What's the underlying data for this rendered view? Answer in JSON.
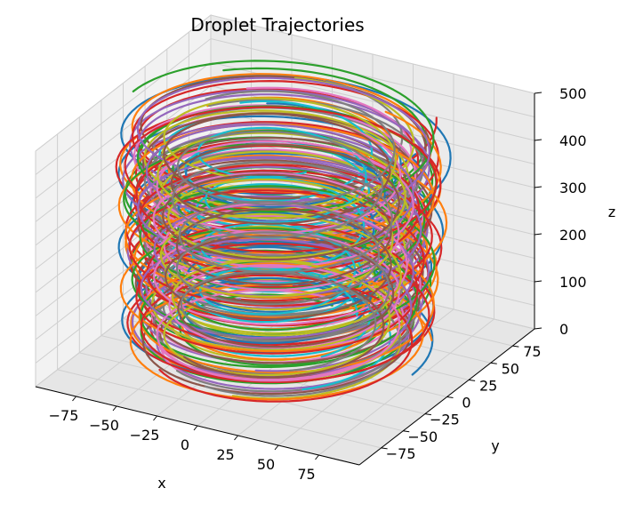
{
  "chart_data": {
    "type": "line3d",
    "title": "Droplet Trajectories",
    "xlabel": "x",
    "ylabel": "y",
    "zlabel": "z",
    "xlim": [
      -100,
      100
    ],
    "ylim": [
      -100,
      100
    ],
    "zlim": [
      0,
      500
    ],
    "x_ticks": [
      "−75",
      "−50",
      "−25",
      "0",
      "25",
      "50",
      "75"
    ],
    "y_ticks": [
      "−75",
      "−50",
      "−25",
      "0",
      "25",
      "50",
      "75"
    ],
    "z_ticks": [
      "0",
      "100",
      "200",
      "300",
      "400",
      "500"
    ],
    "x_tick_values": [
      -75,
      -50,
      -25,
      0,
      25,
      50,
      75
    ],
    "y_tick_values": [
      -75,
      -50,
      -25,
      0,
      25,
      50,
      75
    ],
    "z_tick_values": [
      0,
      100,
      200,
      300,
      400,
      500
    ],
    "grid": true,
    "legend": "none",
    "palette": [
      "#1f77b4",
      "#ff7f0e",
      "#2ca02c",
      "#d62728",
      "#9467bd",
      "#8c564b",
      "#e377c2",
      "#7f7f7f",
      "#bcbd22",
      "#17becf"
    ],
    "series": [
      {
        "color": "#1f77b4",
        "radius": 88,
        "z_start": 20,
        "z_end": 490,
        "turns": 6.0,
        "phase": 0.0
      },
      {
        "color": "#ff7f0e",
        "radius": 85,
        "z_start": 15,
        "z_end": 480,
        "turns": 5.5,
        "phase": 0.6
      },
      {
        "color": "#2ca02c",
        "radius": 82,
        "z_start": 10,
        "z_end": 470,
        "turns": 6.2,
        "phase": 1.2
      },
      {
        "color": "#d62728",
        "radius": 80,
        "z_start": 25,
        "z_end": 495,
        "turns": 5.8,
        "phase": 1.8
      },
      {
        "color": "#9467bd",
        "radius": 78,
        "z_start": 5,
        "z_end": 460,
        "turns": 6.5,
        "phase": 2.4
      },
      {
        "color": "#8c564b",
        "radius": 75,
        "z_start": 30,
        "z_end": 485,
        "turns": 5.2,
        "phase": 3.0
      },
      {
        "color": "#e377c2",
        "radius": 72,
        "z_start": 12,
        "z_end": 450,
        "turns": 6.8,
        "phase": 3.6
      },
      {
        "color": "#7f7f7f",
        "radius": 70,
        "z_start": 18,
        "z_end": 475,
        "turns": 5.6,
        "phase": 4.2
      },
      {
        "color": "#bcbd22",
        "radius": 68,
        "z_start": 8,
        "z_end": 440,
        "turns": 6.1,
        "phase": 4.8
      },
      {
        "color": "#17becf",
        "radius": 65,
        "z_start": 22,
        "z_end": 430,
        "turns": 5.9,
        "phase": 5.4
      },
      {
        "color": "#1f77b4",
        "radius": 62,
        "z_start": 40,
        "z_end": 420,
        "turns": 5.3,
        "phase": 0.3
      },
      {
        "color": "#ff7f0e",
        "radius": 60,
        "z_start": 35,
        "z_end": 445,
        "turns": 6.3,
        "phase": 0.9
      },
      {
        "color": "#2ca02c",
        "radius": 58,
        "z_start": 28,
        "z_end": 410,
        "turns": 5.7,
        "phase": 1.5
      },
      {
        "color": "#d62728",
        "radius": 86,
        "z_start": 45,
        "z_end": 465,
        "turns": 6.4,
        "phase": 2.1
      },
      {
        "color": "#9467bd",
        "radius": 83,
        "z_start": 50,
        "z_end": 455,
        "turns": 5.4,
        "phase": 2.7
      },
      {
        "color": "#8c564b",
        "radius": 79,
        "z_start": 14,
        "z_end": 435,
        "turns": 6.6,
        "phase": 3.3
      },
      {
        "color": "#e377c2",
        "radius": 76,
        "z_start": 38,
        "z_end": 425,
        "turns": 5.1,
        "phase": 3.9
      },
      {
        "color": "#7f7f7f",
        "radius": 73,
        "z_start": 6,
        "z_end": 415,
        "turns": 6.7,
        "phase": 4.5
      },
      {
        "color": "#bcbd22",
        "radius": 71,
        "z_start": 42,
        "z_end": 468,
        "turns": 5.5,
        "phase": 5.1
      },
      {
        "color": "#17becf",
        "radius": 50,
        "z_start": 60,
        "z_end": 460,
        "turns": 4.5,
        "phase": 5.7
      },
      {
        "color": "#1f77b4",
        "radius": 55,
        "z_start": 55,
        "z_end": 405,
        "turns": 4.8,
        "phase": 1.0
      },
      {
        "color": "#ff7f0e",
        "radius": 87,
        "z_start": 3,
        "z_end": 400,
        "turns": 6.9,
        "phase": 2.0
      },
      {
        "color": "#2ca02c",
        "radius": 84,
        "z_start": 65,
        "z_end": 488,
        "turns": 5.0,
        "phase": 3.2
      },
      {
        "color": "#d62728",
        "radius": 81,
        "z_start": 2,
        "z_end": 395,
        "turns": 7.0,
        "phase": 4.0
      },
      {
        "color": "#9467bd",
        "radius": 77,
        "z_start": 70,
        "z_end": 478,
        "turns": 4.9,
        "phase": 5.0
      },
      {
        "color": "#17becf",
        "radius": 45,
        "z_start": 80,
        "z_end": 450,
        "turns": 3.8,
        "phase": 0.5
      },
      {
        "color": "#e377c2",
        "radius": 69,
        "z_start": 16,
        "z_end": 390,
        "turns": 6.0,
        "phase": 1.7
      },
      {
        "color": "#bcbd22",
        "radius": 66,
        "z_start": 24,
        "z_end": 472,
        "turns": 5.3,
        "phase": 2.9
      },
      {
        "color": "#8c564b",
        "radius": 63,
        "z_start": 32,
        "z_end": 438,
        "turns": 6.2,
        "phase": 4.1
      },
      {
        "color": "#7f7f7f",
        "radius": 59,
        "z_start": 48,
        "z_end": 458,
        "turns": 5.6,
        "phase": 5.3
      }
    ]
  }
}
